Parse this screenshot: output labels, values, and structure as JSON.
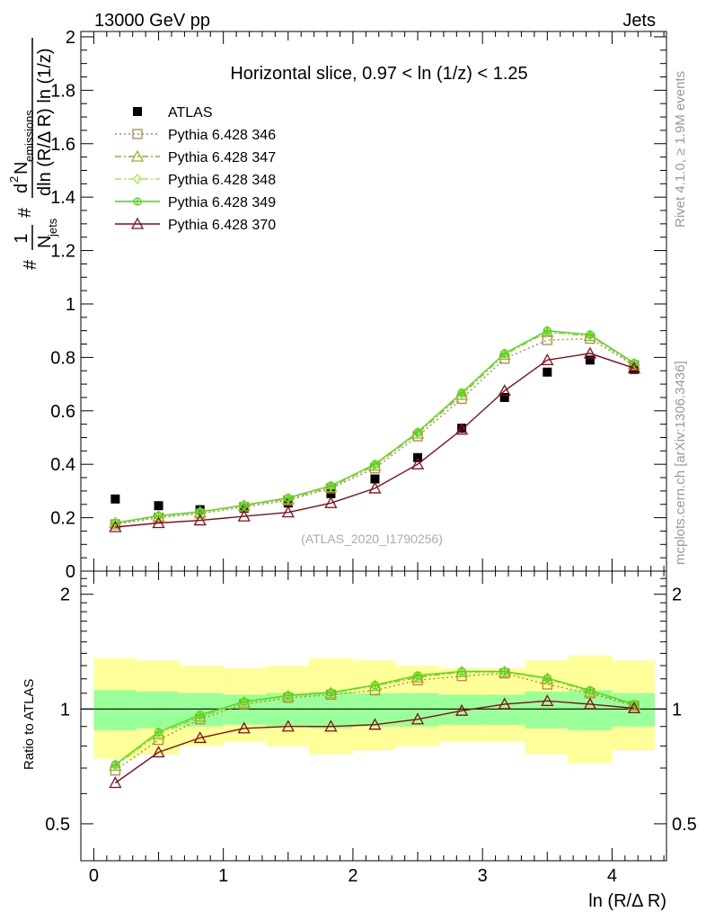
{
  "header": {
    "left": "13000 GeV pp",
    "right": "Jets"
  },
  "side_text": {
    "rivet": "Rivet 4.1.0, ≥ 1.9M events",
    "mcplots": "mcplots.cern.ch [arXiv:1306.3436]"
  },
  "colors": {
    "atlas": "#000000",
    "p346": "#b8864b",
    "p347": "#99b31a",
    "p348": "#a6e64d",
    "p349": "#4dd91a",
    "p370": "#8b0a1a",
    "band_syst": "#ffff99",
    "band_stat": "#99ff99"
  },
  "chart_data": [
    {
      "type": "line",
      "panel": "main",
      "title": "Horizontal slice, 0.97 < ln (1/z) < 1.25",
      "watermark": "(ATLAS_2020_I1790256)",
      "ylabel": "#frac{1}{N_{jets}}#frac{d^{2} N_{emissions}}{dln (R/Δ R) ln (1/z)}",
      "ylabel_parts": {
        "frac1_num": "1",
        "frac1_den": "N",
        "frac1_den_sub": "jets",
        "frac2_num": "d",
        "frac2_num_sup": "2",
        "frac2_num_rest": "N",
        "frac2_num_sub": "emissions",
        "frac2_den": "dln (R/Δ R) ln (1/z)",
        "hash": "#"
      },
      "xlim": [
        -0.1,
        4.42
      ],
      "ylim": [
        0,
        2.02
      ],
      "yticks": [
        0,
        0.2,
        0.4,
        0.6,
        0.8,
        1,
        1.2,
        1.4,
        1.6,
        1.8,
        2
      ],
      "ytick_labels": [
        "0",
        "0.2",
        "0.4",
        "0.6",
        "0.8",
        "1",
        "1.2",
        "1.4",
        "1.6",
        "1.8",
        "2"
      ],
      "x": [
        0.166,
        0.5,
        0.82,
        1.16,
        1.5,
        1.83,
        2.17,
        2.5,
        2.84,
        3.17,
        3.5,
        3.83,
        4.17
      ],
      "series": [
        {
          "name": "ATLAS",
          "key": "atlas",
          "marker": "filled-square",
          "values": [
            0.27,
            0.245,
            0.23,
            0.235,
            0.255,
            0.29,
            0.345,
            0.425,
            0.535,
            0.65,
            0.745,
            0.79,
            0.755
          ]
        },
        {
          "name": "Pythia 6.428 346",
          "key": "p346",
          "marker": "open-square",
          "dash": "dotted",
          "values": [
            0.175,
            0.2,
            0.215,
            0.24,
            0.265,
            0.31,
            0.385,
            0.505,
            0.645,
            0.795,
            0.865,
            0.87,
            0.77
          ]
        },
        {
          "name": "Pythia 6.428 347",
          "key": "p347",
          "marker": "open-triangle",
          "dash": "dashdot",
          "values": [
            0.18,
            0.205,
            0.22,
            0.245,
            0.27,
            0.315,
            0.395,
            0.515,
            0.66,
            0.81,
            0.895,
            0.88,
            0.775
          ]
        },
        {
          "name": "Pythia 6.428 348",
          "key": "p348",
          "marker": "open-diamond",
          "dash": "dashdot",
          "values": [
            0.18,
            0.205,
            0.22,
            0.245,
            0.272,
            0.318,
            0.398,
            0.518,
            0.665,
            0.812,
            0.897,
            0.882,
            0.777
          ]
        },
        {
          "name": "Pythia 6.428 349",
          "key": "p349",
          "marker": "open-cross",
          "dash": "solid",
          "values": [
            0.18,
            0.207,
            0.222,
            0.247,
            0.274,
            0.32,
            0.4,
            0.52,
            0.668,
            0.815,
            0.9,
            0.885,
            0.779
          ]
        },
        {
          "name": "Pythia 6.428 370",
          "key": "p370",
          "marker": "open-triangle",
          "dash": "solid",
          "values": [
            0.165,
            0.18,
            0.19,
            0.205,
            0.22,
            0.255,
            0.31,
            0.4,
            0.53,
            0.675,
            0.79,
            0.815,
            0.76
          ]
        }
      ]
    },
    {
      "type": "line",
      "panel": "ratio",
      "ylabel": "Ratio to ATLAS",
      "xlabel": "ln (R/Δ R)",
      "xlim": [
        -0.1,
        4.42
      ],
      "ylim": [
        0.4,
        2.3
      ],
      "yscale": "log",
      "xticks": [
        0,
        1,
        2,
        3,
        4
      ],
      "xtick_labels": [
        "0",
        "1",
        "2",
        "3",
        "4"
      ],
      "yticks": [
        0.5,
        1,
        2
      ],
      "ytick_labels": [
        "0.5",
        "1",
        "2"
      ],
      "bin_edges": [
        0,
        0.33,
        0.66,
        1.0,
        1.33,
        1.66,
        2.0,
        2.33,
        2.66,
        3.0,
        3.33,
        3.66,
        4.0,
        4.33
      ],
      "band_syst": {
        "lo": [
          0.74,
          0.76,
          0.8,
          0.82,
          0.8,
          0.76,
          0.78,
          0.8,
          0.82,
          0.82,
          0.76,
          0.72,
          0.78
        ],
        "hi": [
          1.36,
          1.34,
          1.3,
          1.28,
          1.3,
          1.36,
          1.34,
          1.3,
          1.28,
          1.28,
          1.34,
          1.38,
          1.34
        ]
      },
      "band_stat": {
        "lo": [
          0.88,
          0.89,
          0.9,
          0.91,
          0.9,
          0.89,
          0.9,
          0.9,
          0.91,
          0.91,
          0.89,
          0.88,
          0.9
        ],
        "hi": [
          1.12,
          1.11,
          1.1,
          1.09,
          1.1,
          1.11,
          1.1,
          1.1,
          1.09,
          1.09,
          1.11,
          1.12,
          1.1
        ]
      },
      "series": [
        {
          "name": "Pythia 6.428 346",
          "key": "p346",
          "marker": "open-square",
          "dash": "dotted",
          "values": [
            0.69,
            0.83,
            0.94,
            1.03,
            1.07,
            1.09,
            1.12,
            1.19,
            1.22,
            1.24,
            1.16,
            1.1,
            1.02
          ]
        },
        {
          "name": "Pythia 6.428 347",
          "key": "p347",
          "marker": "open-triangle",
          "dash": "dashdot",
          "values": [
            0.71,
            0.86,
            0.955,
            1.04,
            1.08,
            1.1,
            1.15,
            1.21,
            1.25,
            1.25,
            1.2,
            1.11,
            1.025
          ]
        },
        {
          "name": "Pythia 6.428 348",
          "key": "p348",
          "marker": "open-diamond",
          "dash": "dashdot",
          "values": [
            0.71,
            0.86,
            0.96,
            1.04,
            1.08,
            1.1,
            1.15,
            1.22,
            1.25,
            1.25,
            1.2,
            1.115,
            1.03
          ]
        },
        {
          "name": "Pythia 6.428 349",
          "key": "p349",
          "marker": "open-cross",
          "dash": "solid",
          "values": [
            0.715,
            0.87,
            0.965,
            1.045,
            1.085,
            1.105,
            1.155,
            1.225,
            1.255,
            1.255,
            1.205,
            1.12,
            1.03
          ]
        },
        {
          "name": "Pythia 6.428 370",
          "key": "p370",
          "marker": "open-triangle",
          "dash": "solid",
          "values": [
            0.64,
            0.77,
            0.84,
            0.89,
            0.9,
            0.9,
            0.91,
            0.94,
            0.99,
            1.03,
            1.05,
            1.03,
            1.005
          ]
        }
      ]
    }
  ]
}
